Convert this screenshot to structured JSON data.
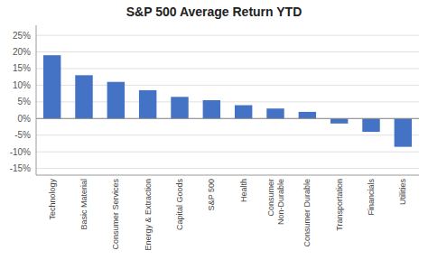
{
  "chart_data": {
    "type": "bar",
    "title": "S&P 500 Average Return YTD",
    "categories": [
      "Technology",
      "Basic Material",
      "Consumer Services",
      "Energy & Extraction",
      "Capital Goods",
      "S&P 500",
      "Health",
      "Consumer\nNon-Durable",
      "Consumer Durable",
      "Transportation",
      "Financials",
      "Utilities"
    ],
    "values": [
      19.0,
      13.0,
      11.0,
      8.5,
      6.5,
      5.5,
      4.0,
      3.0,
      2.0,
      -1.5,
      -4.0,
      -8.5
    ],
    "color": "#4472C4",
    "ylim": [
      -17,
      28
    ],
    "yticks": [
      {
        "value": -15,
        "label": "-15%"
      },
      {
        "value": -10,
        "label": "-10%"
      },
      {
        "value": -5,
        "label": "-5%"
      },
      {
        "value": 0,
        "label": "0%"
      },
      {
        "value": 5,
        "label": "5%"
      },
      {
        "value": 10,
        "label": "10%"
      },
      {
        "value": 15,
        "label": "15%"
      },
      {
        "value": 20,
        "label": "20%"
      },
      {
        "value": 25,
        "label": "25%"
      }
    ],
    "grid": true
  }
}
